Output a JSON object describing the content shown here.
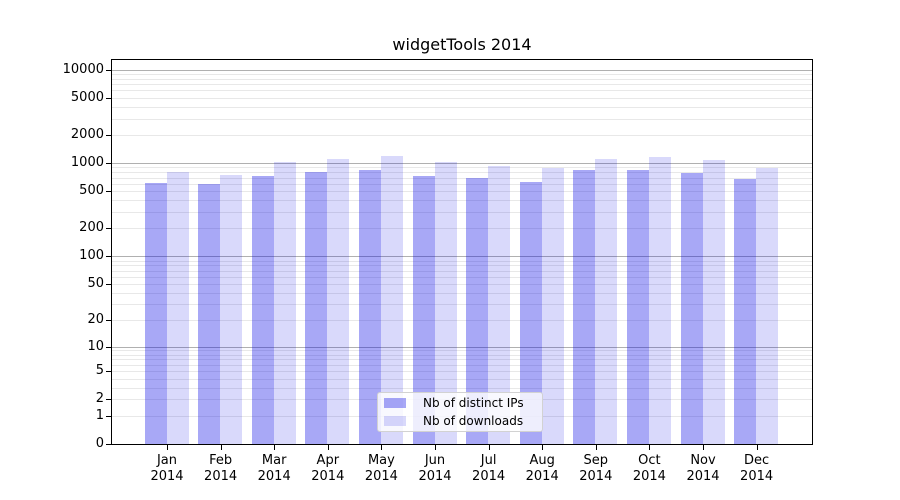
{
  "chart_data": {
    "type": "bar",
    "title": "widgetTools 2014",
    "categories": [
      "Jan 2014",
      "Feb 2014",
      "Mar 2014",
      "Apr 2014",
      "May 2014",
      "Jun 2014",
      "Jul 2014",
      "Aug 2014",
      "Sep 2014",
      "Oct 2014",
      "Nov 2014",
      "Dec 2014"
    ],
    "series": [
      {
        "name": "Nb of distinct IPs",
        "color": "rgba(0,0,230,0.34)",
        "values": [
          620,
          595,
          735,
          800,
          840,
          725,
          700,
          635,
          850,
          850,
          790,
          670
        ]
      },
      {
        "name": "Nb of downloads",
        "color": "rgba(0,0,230,0.15)",
        "values": [
          800,
          755,
          1030,
          1110,
          1200,
          1030,
          935,
          890,
          1110,
          1165,
          1080,
          880
        ]
      }
    ],
    "xlabel": "",
    "ylabel": "",
    "y_scale": "log10(value+1)",
    "ylim": [
      0,
      12600
    ],
    "y_ticks": [
      0,
      1,
      2,
      5,
      10,
      20,
      50,
      100,
      200,
      500,
      1000,
      2000,
      5000,
      10000
    ],
    "grid": {
      "major": [
        10,
        100,
        1000,
        10000
      ],
      "minor": [
        1,
        2,
        3,
        4,
        5,
        6,
        7,
        8,
        9,
        20,
        30,
        40,
        50,
        60,
        70,
        80,
        90,
        200,
        300,
        400,
        500,
        600,
        700,
        800,
        900,
        2000,
        3000,
        4000,
        5000,
        6000,
        7000,
        8000,
        9000
      ],
      "major_color": "#b0b0b0",
      "minor_color": "#e8e8e8"
    },
    "legend_position": "lower center",
    "axis_color": "#000000",
    "background_color": "#ffffff"
  }
}
